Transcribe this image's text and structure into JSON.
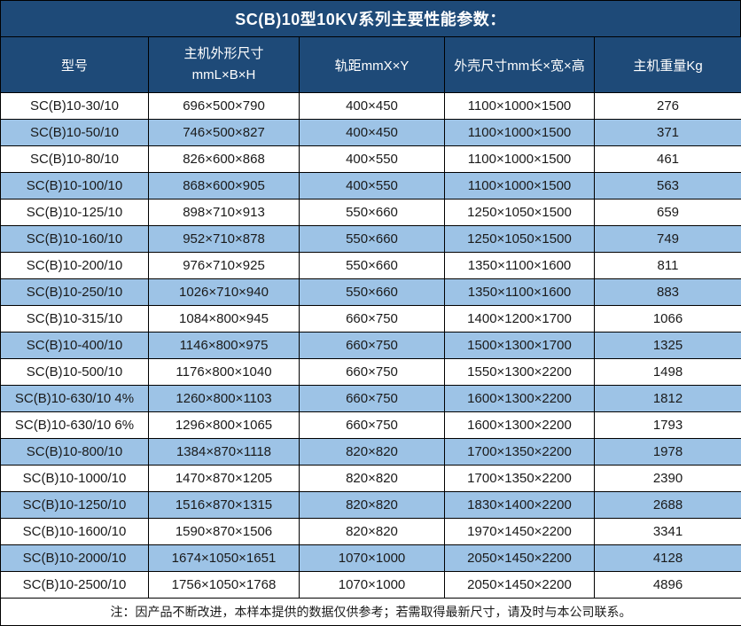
{
  "title": "SC(B)10型10KV系列主要性能参数：",
  "note": "注：因产品不断改进，本样本提供的数据仅供参考；若需取得最新尺寸，请及时与本公司联系。",
  "colors": {
    "header_bg": "#1E4A78",
    "row_alt_bg": "#9DC3E6",
    "border": "#000000"
  },
  "table": {
    "headers": [
      "型号",
      "主机外形尺寸\nmmL×B×H",
      "轨距mmX×Y",
      "外壳尺寸mm长×宽×高",
      "主机重量Kg"
    ],
    "rows": [
      [
        "SC(B)10-30/10",
        "696×500×790",
        "400×450",
        "1100×1000×1500",
        "276"
      ],
      [
        "SC(B)10-50/10",
        "746×500×827",
        "400×450",
        "1100×1000×1500",
        "371"
      ],
      [
        "SC(B)10-80/10",
        "826×600×868",
        "400×550",
        "1100×1000×1500",
        "461"
      ],
      [
        "SC(B)10-100/10",
        "868×600×905",
        "400×550",
        "1100×1000×1500",
        "563"
      ],
      [
        "SC(B)10-125/10",
        "898×710×913",
        "550×660",
        "1250×1050×1500",
        "659"
      ],
      [
        "SC(B)10-160/10",
        "952×710×878",
        "550×660",
        "1250×1050×1500",
        "749"
      ],
      [
        "SC(B)10-200/10",
        "976×710×925",
        "550×660",
        "1350×1100×1600",
        "811"
      ],
      [
        "SC(B)10-250/10",
        "1026×710×940",
        "550×660",
        "1350×1100×1600",
        "883"
      ],
      [
        "SC(B)10-315/10",
        "1084×800×945",
        "660×750",
        "1400×1200×1700",
        "1066"
      ],
      [
        "SC(B)10-400/10",
        "1146×800×975",
        "660×750",
        "1500×1300×1700",
        "1325"
      ],
      [
        "SC(B)10-500/10",
        "1176×800×1040",
        "660×750",
        "1550×1300×2200",
        "1498"
      ],
      [
        "SC(B)10-630/10 4%",
        "1260×800×1103",
        "660×750",
        "1600×1300×2200",
        "1812"
      ],
      [
        "SC(B)10-630/10 6%",
        "1296×800×1065",
        "660×750",
        "1600×1300×2200",
        "1793"
      ],
      [
        "SC(B)10-800/10",
        "1384×870×1118",
        "820×820",
        "1700×1350×2200",
        "1978"
      ],
      [
        "SC(B)10-1000/10",
        "1470×870×1205",
        "820×820",
        "1700×1350×2200",
        "2390"
      ],
      [
        "SC(B)10-1250/10",
        "1516×870×1315",
        "820×820",
        "1830×1400×2200",
        "2688"
      ],
      [
        "SC(B)10-1600/10",
        "1590×870×1506",
        "820×820",
        "1970×1450×2200",
        "3341"
      ],
      [
        "SC(B)10-2000/10",
        "1674×1050×1651",
        "1070×1000",
        "2050×1450×2200",
        "4128"
      ],
      [
        "SC(B)10-2500/10",
        "1756×1050×1768",
        "1070×1000",
        "2050×1450×2200",
        "4896"
      ]
    ]
  }
}
